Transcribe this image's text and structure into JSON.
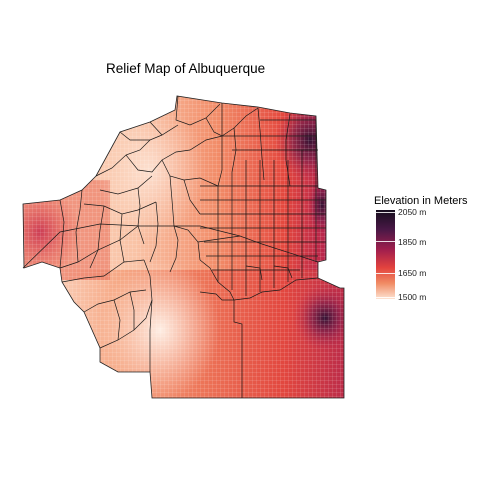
{
  "title": "Relief Map of Albuquerque",
  "legend": {
    "title": "Elevation in Meters",
    "ticks": [
      {
        "label": "2050 m",
        "value": 2050
      },
      {
        "label": "1850 m",
        "value": 1850
      },
      {
        "label": "1650 m",
        "value": 1650
      },
      {
        "label": "1500 m",
        "value": 1500
      }
    ],
    "range": [
      1500,
      2050
    ],
    "colors": {
      "low": "#fde2d1",
      "mid_low": "#f08a63",
      "mid": "#e3433e",
      "mid_high": "#a21f4d",
      "high": "#4a1846",
      "peak": "#160e1e"
    }
  }
}
